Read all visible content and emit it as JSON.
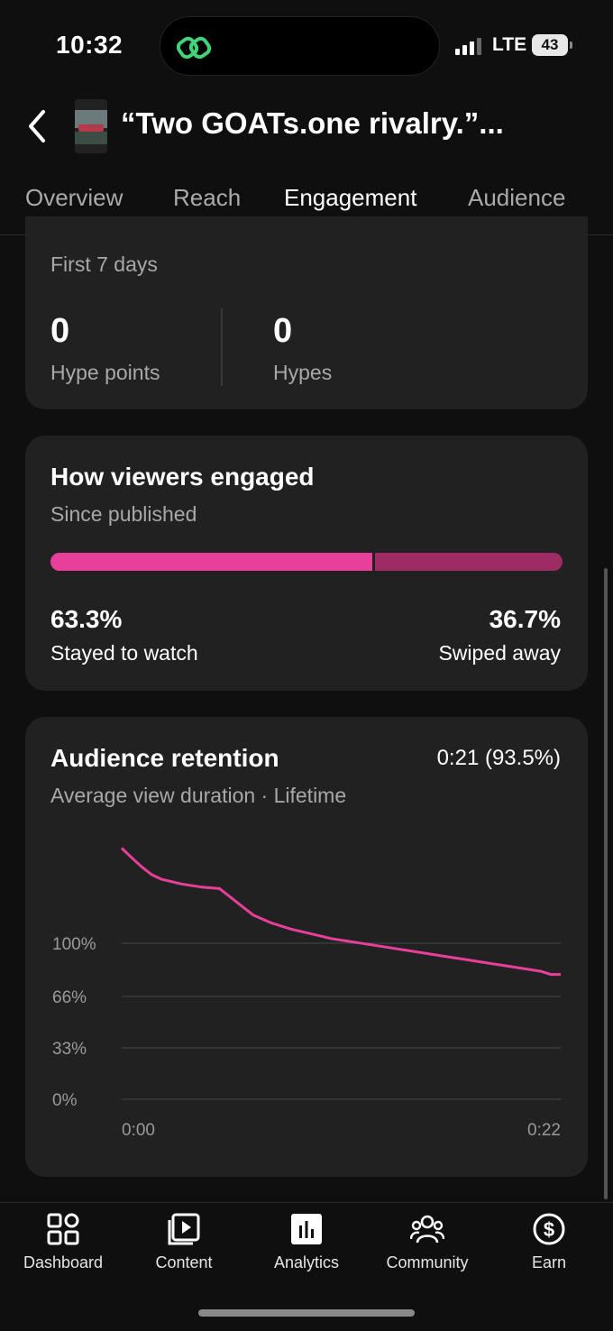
{
  "status_bar": {
    "time": "10:32",
    "network": "LTE",
    "battery": "43"
  },
  "header": {
    "title": "“Two GOATs.one rivalry.”..."
  },
  "tabs": [
    {
      "label": "Overview",
      "active": false
    },
    {
      "label": "Reach",
      "active": false
    },
    {
      "label": "Engagement",
      "active": true
    },
    {
      "label": "Audience",
      "active": false
    }
  ],
  "hype_card": {
    "period": "First 7 days",
    "hype_points_value": "0",
    "hype_points_label": "Hype points",
    "hypes_value": "0",
    "hypes_label": "Hypes"
  },
  "engaged_card": {
    "title": "How viewers engaged",
    "subtitle": "Since published",
    "stayed_pct": "63.3%",
    "stayed_label": "Stayed to watch",
    "swiped_pct": "36.7%",
    "swiped_label": "Swiped away",
    "stayed_fraction": 0.633,
    "colors": {
      "stayed": "#e8409a",
      "swiped": "#9e2b64"
    }
  },
  "retention_card": {
    "title": "Audience retention",
    "value": "0:21 (93.5%)",
    "subtitle": "Average view duration · Lifetime"
  },
  "chart_data": {
    "type": "line",
    "title": "Audience retention",
    "y_tick_labels": [
      "100%",
      "66%",
      "33%",
      "0%"
    ],
    "x_tick_labels": [
      "0:00",
      "0:22"
    ],
    "xlim": [
      0,
      22
    ],
    "color": "#e8409a",
    "series": [
      {
        "x": [
          0,
          0.4,
          1,
          1.5,
          2,
          3,
          4,
          4.9,
          5.5,
          6.6,
          7.5,
          8.5,
          9.5,
          10.5,
          11.5,
          12.5,
          13.5,
          14.5,
          15.5,
          16.5,
          17.5,
          18.5,
          19.5,
          20.5,
          21,
          21.5,
          22
        ],
        "y": [
          161,
          156,
          149,
          144,
          141,
          138,
          136,
          135,
          129,
          118,
          113,
          109,
          106,
          103,
          101,
          99,
          97,
          95,
          93,
          91,
          89,
          87,
          85,
          83,
          82,
          80,
          80
        ]
      }
    ]
  },
  "nav": [
    {
      "label": "Dashboard",
      "icon": "dashboard-icon"
    },
    {
      "label": "Content",
      "icon": "content-icon"
    },
    {
      "label": "Analytics",
      "icon": "analytics-icon"
    },
    {
      "label": "Community",
      "icon": "community-icon"
    },
    {
      "label": "Earn",
      "icon": "earn-icon"
    }
  ]
}
